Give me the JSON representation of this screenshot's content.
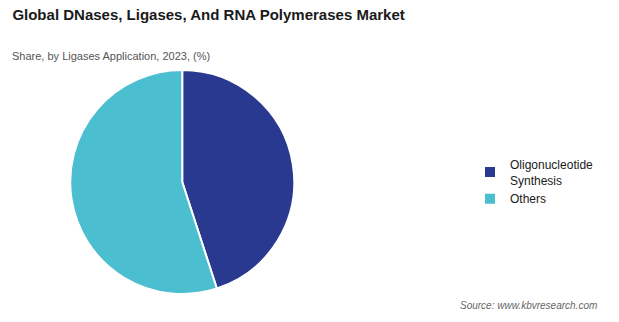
{
  "chart_data": {
    "type": "pie",
    "title": "Global DNases, Ligases, And RNA Polymerases Market",
    "subtitle": "Share, by Ligases Application, 2023, (%)",
    "annotations": [
      "Source: www.kbvresearch.com"
    ],
    "categories": [
      "Oligonucleotide\nSynthesis",
      "Others"
    ],
    "values": [
      45,
      55
    ],
    "colors": [
      "#2a3990",
      "#4bbfcf"
    ],
    "legend": "right"
  }
}
